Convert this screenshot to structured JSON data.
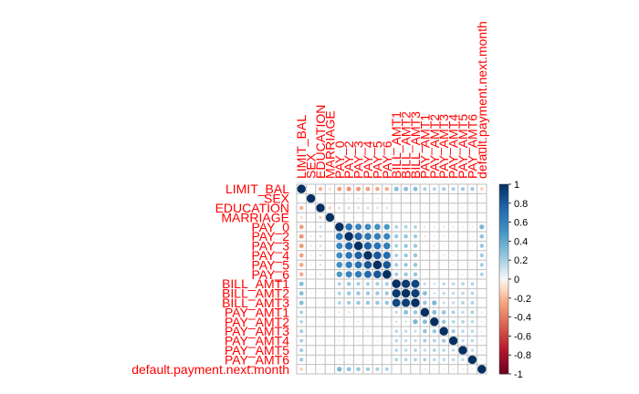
{
  "chart_data": {
    "type": "heatmap",
    "title": "",
    "variables": [
      "LIMIT_BAL",
      "SEX",
      "EDUCATION",
      "MARRIAGE",
      "PAY_0",
      "PAY_2",
      "PAY_3",
      "PAY_4",
      "PAY_5",
      "PAY_6",
      "BILL_AMT1",
      "BILL_AMT2",
      "BILL_AMT3",
      "PAY_AMT1",
      "PAY_AMT2",
      "PAY_AMT3",
      "PAY_AMT4",
      "PAY_AMT5",
      "PAY_AMT6",
      "default.payment.next.month"
    ],
    "matrix": [
      [
        1.0,
        0.02,
        -0.22,
        -0.11,
        -0.27,
        -0.3,
        -0.29,
        -0.27,
        -0.25,
        -0.24,
        0.29,
        0.28,
        0.28,
        0.2,
        0.18,
        0.21,
        0.2,
        0.22,
        0.22,
        -0.15
      ],
      [
        0.02,
        1.0,
        0.01,
        -0.03,
        -0.06,
        -0.07,
        -0.07,
        -0.06,
        -0.06,
        -0.04,
        -0.03,
        -0.03,
        -0.02,
        0.0,
        -0.01,
        -0.01,
        0.0,
        0.0,
        0.0,
        -0.04
      ],
      [
        -0.22,
        0.01,
        1.0,
        -0.14,
        0.11,
        0.12,
        0.11,
        0.11,
        0.1,
        0.09,
        0.02,
        0.02,
        0.01,
        -0.04,
        -0.03,
        -0.04,
        -0.04,
        -0.04,
        -0.04,
        0.03
      ],
      [
        -0.11,
        -0.03,
        -0.14,
        1.0,
        0.02,
        0.02,
        0.03,
        0.03,
        0.04,
        0.03,
        -0.02,
        -0.02,
        -0.02,
        -0.01,
        -0.01,
        0.0,
        -0.01,
        -0.01,
        -0.01,
        -0.02
      ],
      [
        -0.27,
        -0.06,
        0.11,
        0.02,
        1.0,
        0.67,
        0.57,
        0.54,
        0.51,
        0.47,
        0.19,
        0.19,
        0.18,
        -0.08,
        -0.07,
        -0.07,
        -0.06,
        -0.06,
        -0.06,
        0.32
      ],
      [
        -0.3,
        -0.07,
        0.12,
        0.02,
        0.67,
        1.0,
        0.77,
        0.66,
        0.62,
        0.58,
        0.23,
        0.24,
        0.22,
        -0.08,
        -0.06,
        -0.06,
        -0.05,
        -0.04,
        -0.04,
        0.26
      ],
      [
        -0.29,
        -0.07,
        0.11,
        0.03,
        0.57,
        0.77,
        1.0,
        0.78,
        0.69,
        0.63,
        0.21,
        0.24,
        0.23,
        0.0,
        -0.07,
        -0.05,
        -0.05,
        -0.04,
        -0.04,
        0.24
      ],
      [
        -0.27,
        -0.06,
        0.11,
        0.03,
        0.54,
        0.66,
        0.78,
        1.0,
        0.82,
        0.72,
        0.2,
        0.23,
        0.24,
        -0.01,
        -0.0,
        -0.07,
        -0.04,
        -0.03,
        -0.03,
        0.22
      ],
      [
        -0.25,
        -0.06,
        0.1,
        0.04,
        0.51,
        0.62,
        0.69,
        0.82,
        1.0,
        0.82,
        0.21,
        0.23,
        0.24,
        -0.01,
        -0.0,
        0.01,
        -0.06,
        -0.03,
        -0.02,
        0.2
      ],
      [
        -0.24,
        -0.04,
        0.09,
        0.03,
        0.47,
        0.58,
        0.63,
        0.72,
        0.82,
        1.0,
        0.21,
        0.23,
        0.24,
        -0.0,
        -0.01,
        0.01,
        0.02,
        -0.05,
        -0.03,
        0.19
      ],
      [
        0.29,
        -0.03,
        0.02,
        -0.02,
        0.19,
        0.23,
        0.21,
        0.2,
        0.21,
        0.21,
        1.0,
        0.95,
        0.89,
        0.14,
        0.1,
        0.16,
        0.16,
        0.17,
        0.18,
        -0.02
      ],
      [
        0.28,
        -0.03,
        0.02,
        -0.02,
        0.19,
        0.24,
        0.24,
        0.23,
        0.23,
        0.23,
        0.95,
        1.0,
        0.93,
        0.28,
        0.1,
        0.15,
        0.15,
        0.16,
        0.17,
        -0.01
      ],
      [
        0.28,
        -0.02,
        0.01,
        -0.02,
        0.18,
        0.22,
        0.23,
        0.24,
        0.24,
        0.24,
        0.89,
        0.93,
        1.0,
        0.24,
        0.32,
        0.13,
        0.14,
        0.18,
        0.18,
        -0.01
      ],
      [
        0.2,
        0.0,
        -0.04,
        -0.01,
        -0.08,
        -0.08,
        0.0,
        -0.01,
        -0.01,
        -0.0,
        0.14,
        0.28,
        0.24,
        1.0,
        0.29,
        0.25,
        0.2,
        0.15,
        0.19,
        -0.07
      ],
      [
        0.18,
        -0.01,
        -0.03,
        -0.01,
        -0.07,
        -0.06,
        -0.07,
        -0.0,
        -0.0,
        -0.01,
        0.1,
        0.1,
        0.32,
        0.29,
        1.0,
        0.24,
        0.18,
        0.18,
        0.16,
        -0.06
      ],
      [
        0.21,
        -0.01,
        -0.04,
        0.0,
        -0.07,
        -0.06,
        -0.05,
        -0.07,
        0.01,
        0.01,
        0.16,
        0.15,
        0.13,
        0.25,
        0.24,
        1.0,
        0.22,
        0.16,
        0.16,
        -0.06
      ],
      [
        0.2,
        0.0,
        -0.04,
        -0.01,
        -0.06,
        -0.05,
        -0.05,
        -0.04,
        -0.06,
        0.02,
        0.16,
        0.15,
        0.14,
        0.2,
        0.18,
        0.22,
        1.0,
        0.15,
        0.16,
        -0.06
      ],
      [
        0.22,
        0.0,
        -0.04,
        -0.01,
        -0.06,
        -0.04,
        -0.04,
        -0.03,
        -0.03,
        -0.05,
        0.17,
        0.16,
        0.18,
        0.15,
        0.18,
        0.16,
        0.15,
        1.0,
        0.15,
        -0.06
      ],
      [
        0.22,
        0.0,
        -0.04,
        -0.01,
        -0.06,
        -0.04,
        -0.04,
        -0.03,
        -0.02,
        -0.03,
        0.18,
        0.17,
        0.18,
        0.19,
        0.16,
        0.16,
        0.16,
        0.15,
        1.0,
        -0.05
      ],
      [
        -0.15,
        -0.04,
        0.03,
        -0.02,
        0.32,
        0.26,
        0.24,
        0.22,
        0.2,
        0.19,
        -0.02,
        -0.01,
        -0.01,
        -0.07,
        -0.06,
        -0.06,
        -0.06,
        -0.06,
        -0.05,
        1.0
      ]
    ],
    "colorbar": {
      "ticks": [
        "1",
        "0.8",
        "0.6",
        "0.4",
        "0.2",
        "0",
        "-0.2",
        "-0.4",
        "-0.6",
        "-0.8",
        "-1"
      ],
      "range": [
        -1,
        1
      ]
    },
    "legend_position": "right",
    "label_color": "#ff0000",
    "grid_color": "#bfbfbf"
  }
}
